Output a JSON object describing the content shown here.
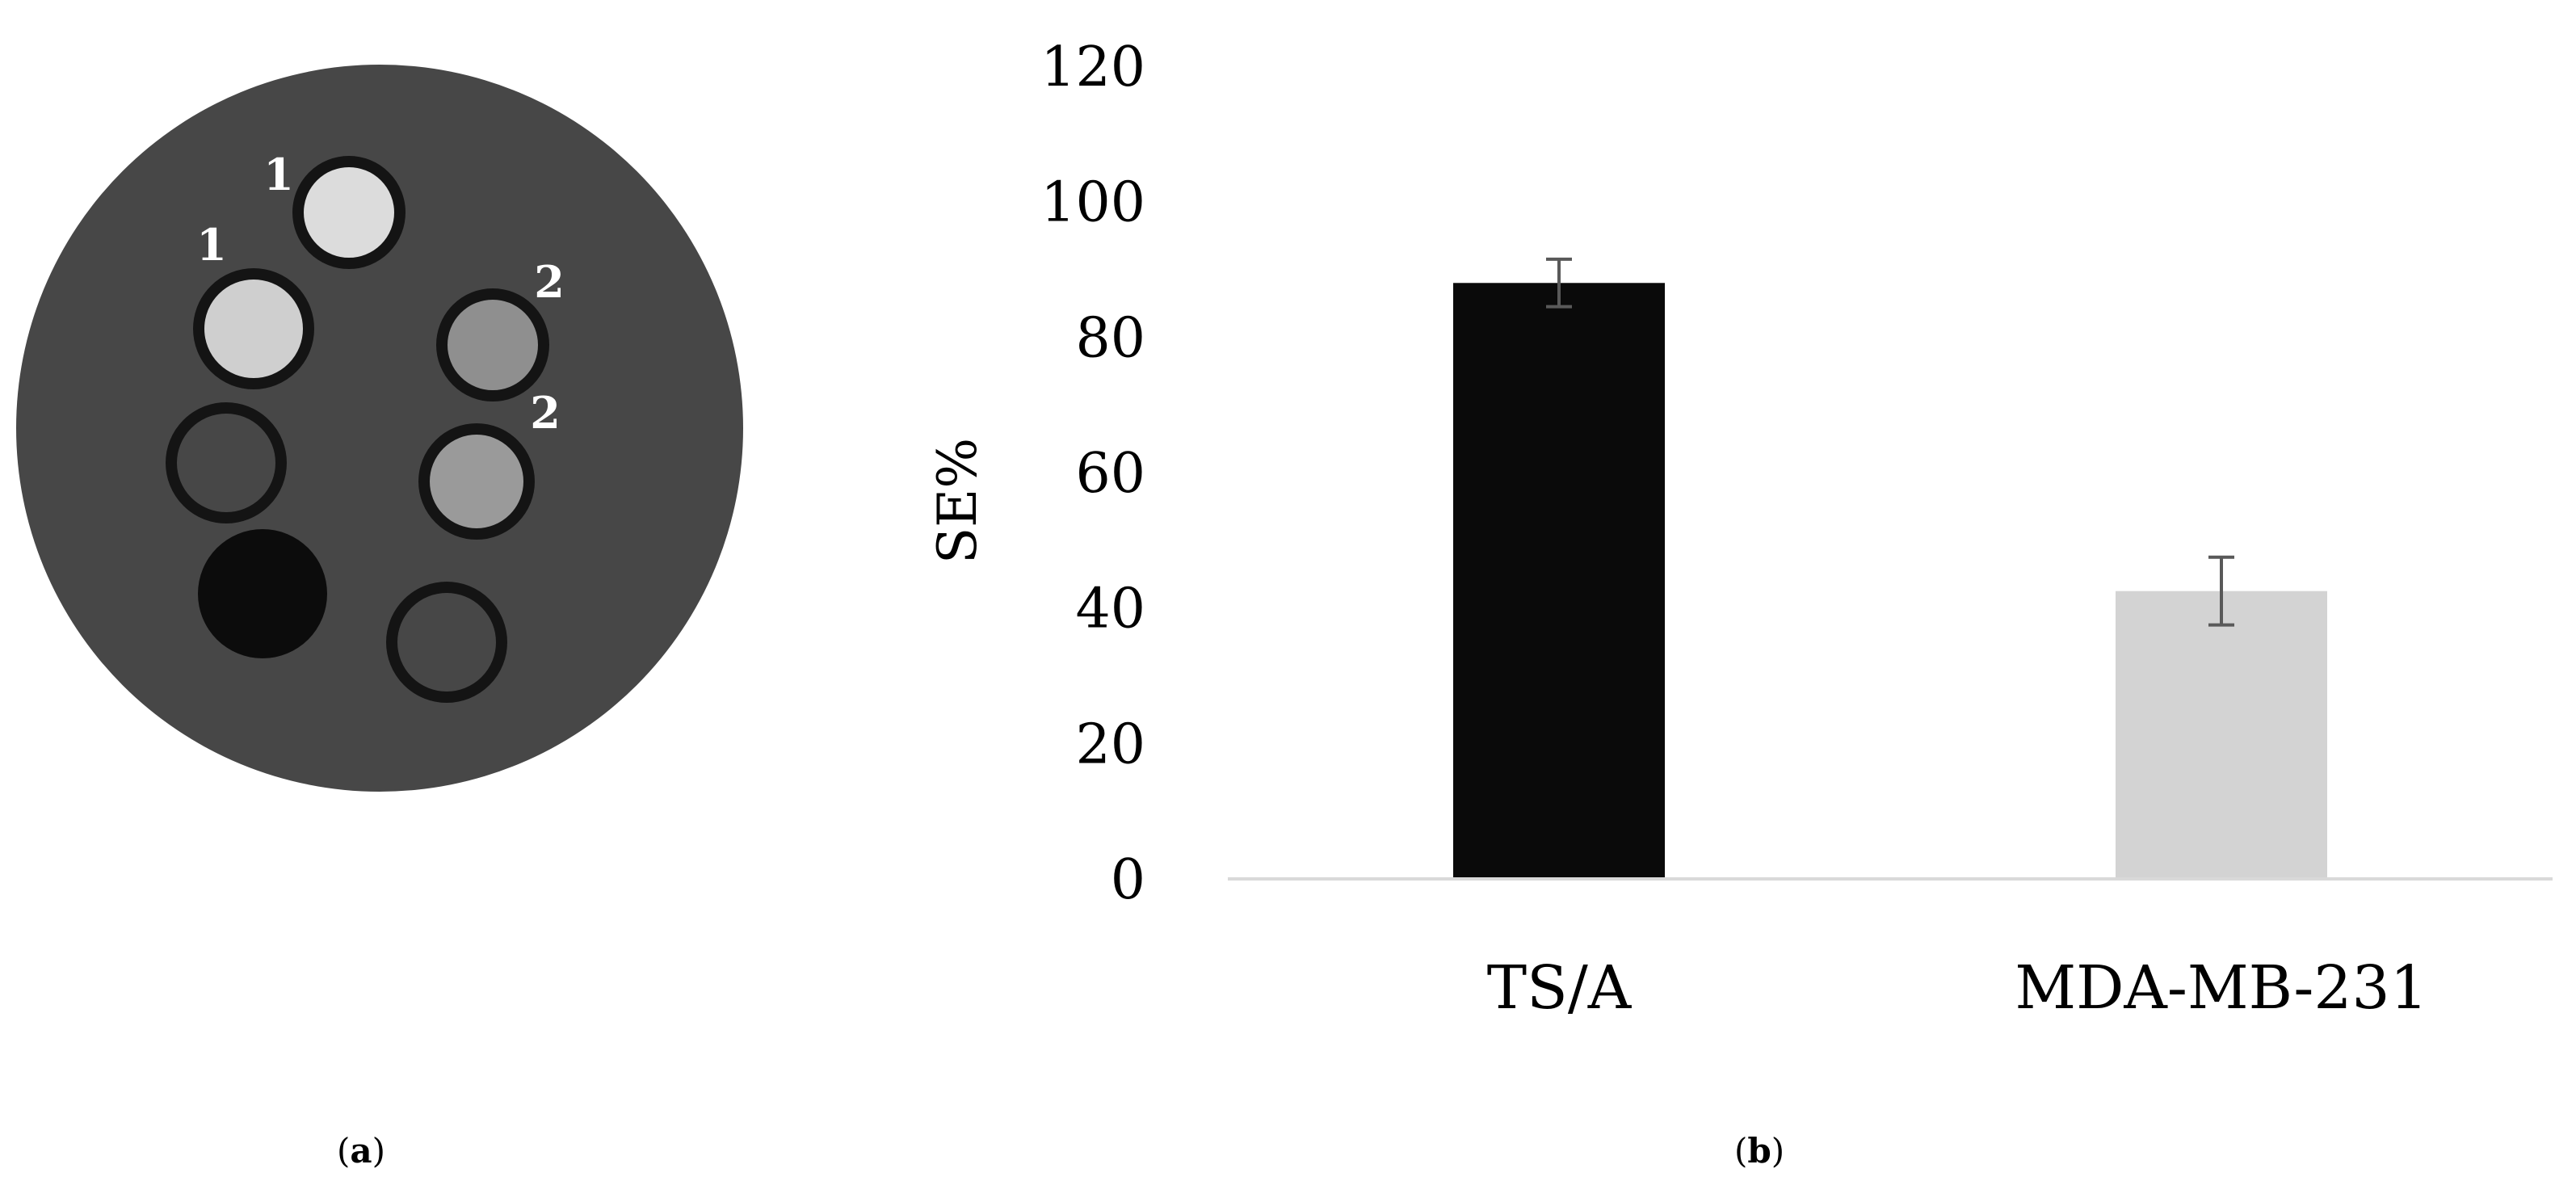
{
  "panels": {
    "a": "a",
    "b": "b"
  },
  "phantom": {
    "background_color": "#474747",
    "vial_labels": [
      "1",
      "1",
      "2",
      "2"
    ],
    "vials": [
      {
        "label": "1",
        "fill": "#dcdcdc"
      },
      {
        "label": "1",
        "fill": "#cfcfcf"
      },
      {
        "label": "2",
        "fill": "#8f8f8f"
      },
      {
        "label": "2",
        "fill": "#9a9a9a"
      },
      {
        "label": "",
        "fill": "#474747"
      },
      {
        "label": "",
        "fill": "#0c0c0c"
      },
      {
        "label": "",
        "fill": "#474747"
      }
    ]
  },
  "chart_data": {
    "type": "bar",
    "categories": [
      "TS/A",
      "MDA-MB-231"
    ],
    "values": [
      88,
      42.5
    ],
    "errors": [
      3.5,
      5
    ],
    "bar_colors": [
      "#0a0a0a",
      "#d3d3d3"
    ],
    "title": "",
    "xlabel": "",
    "ylabel": "SE%",
    "ylim": [
      0,
      120
    ],
    "yticks": [
      0,
      20,
      40,
      60,
      80,
      100,
      120
    ],
    "grid": false,
    "axis_color": "#d9d9d9"
  }
}
